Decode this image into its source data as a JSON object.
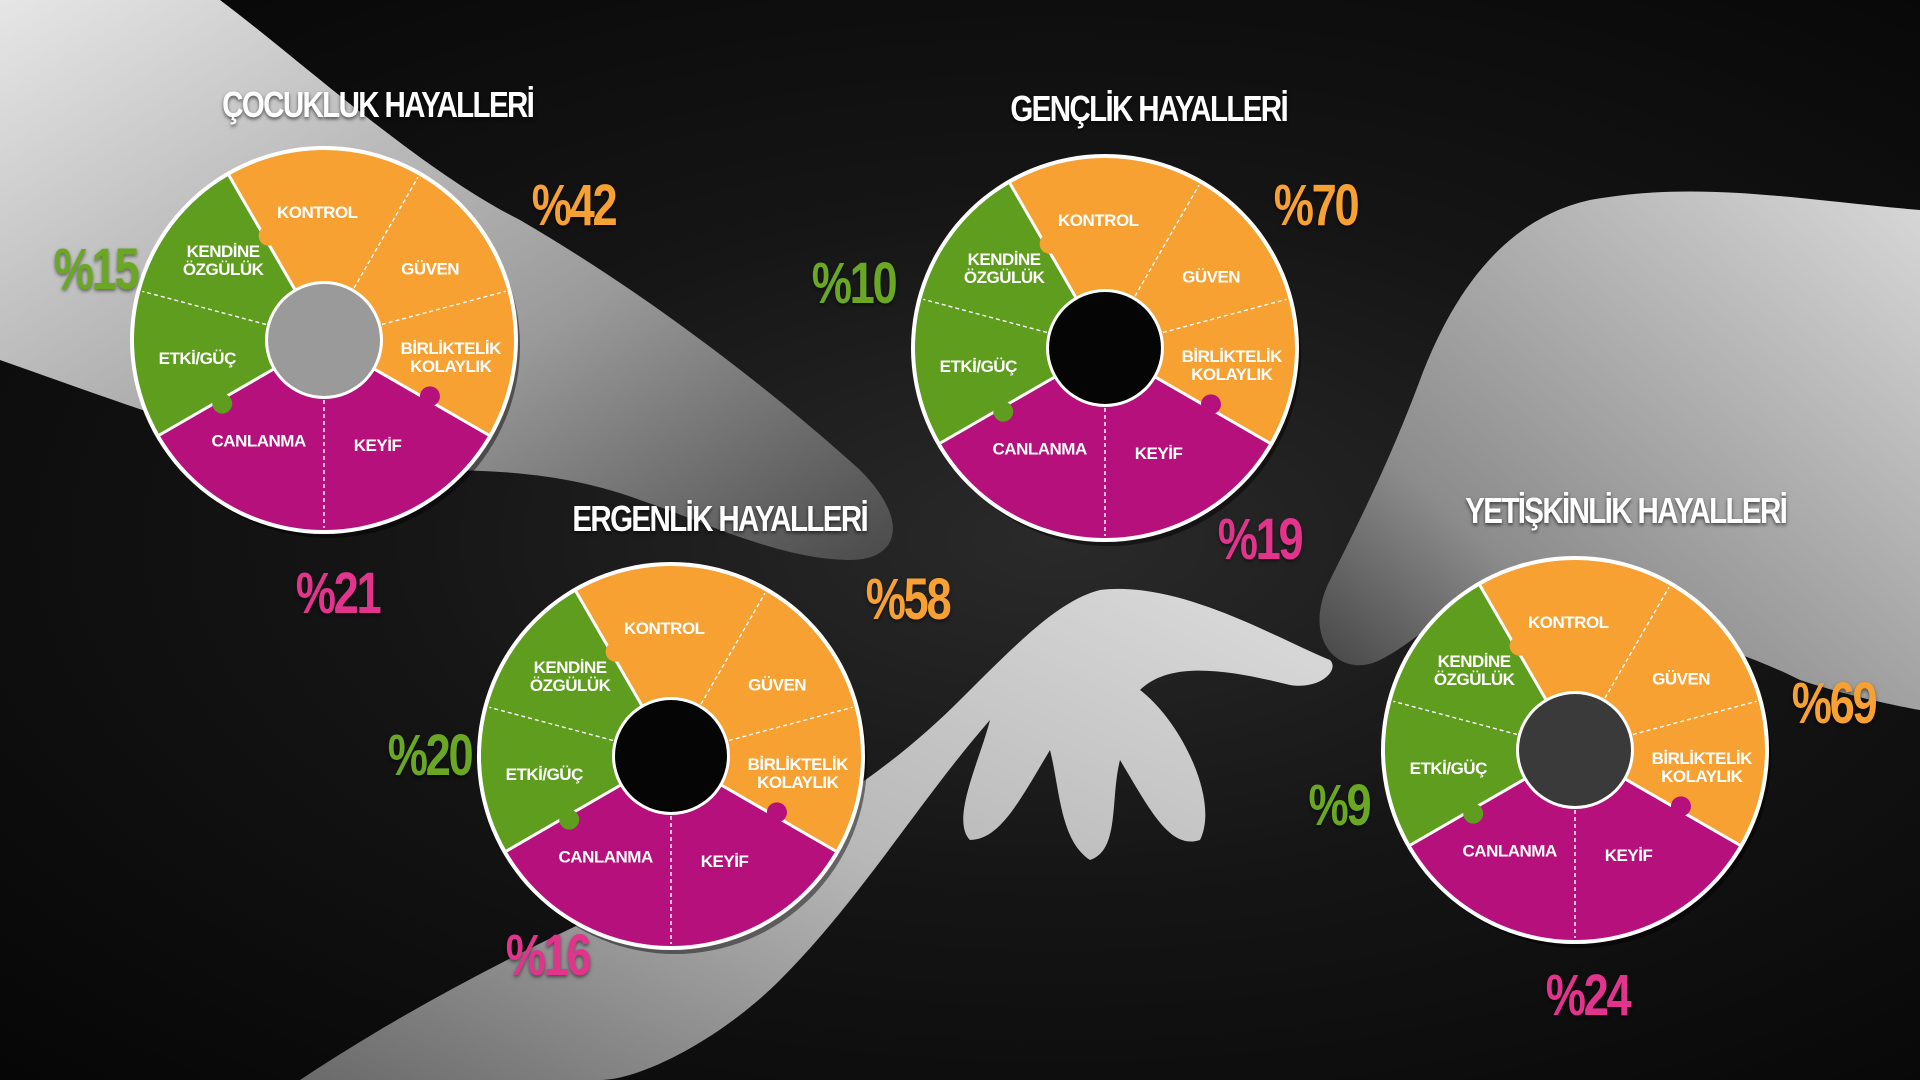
{
  "colors": {
    "orange": "#f7a133",
    "green": "#5e9d1e",
    "magenta": "#b5107c",
    "pct_green": "#6aa722",
    "pct_magenta": "#e2338d"
  },
  "slice_labels": {
    "kontrol": "KONTROL",
    "guven": "GÜVEN",
    "birliktelik_1": "BİRLİKTELİK",
    "birliktelik_2": "KOLAYLIK",
    "keyif": "KEYİF",
    "canlanma": "CANLANMA",
    "etki": "ETKİ/GÜÇ",
    "kendine_1": "KENDİNE",
    "kendine_2": "ÖZGÜLÜK"
  },
  "chart_data": [
    {
      "type": "pie",
      "title": "ÇOCUKLUK HAYALLERİ",
      "series": [
        {
          "name": "orange",
          "categories": [
            "KONTROL",
            "GÜVEN",
            "BİRLİKTELİK KOLAYLIK"
          ],
          "value": 42,
          "label": "%42"
        },
        {
          "name": "magenta",
          "categories": [
            "KEYİF",
            "CANLANMA"
          ],
          "value": 21,
          "label": "%21"
        },
        {
          "name": "green",
          "categories": [
            "ETKİ/GÜÇ",
            "KENDİNE ÖZGÜLÜK"
          ],
          "value": 15,
          "label": "%15"
        }
      ]
    },
    {
      "type": "pie",
      "title": "GENÇLİK HAYALLERİ",
      "series": [
        {
          "name": "orange",
          "categories": [
            "KONTROL",
            "GÜVEN",
            "BİRLİKTELİK KOLAYLIK"
          ],
          "value": 70,
          "label": "%70"
        },
        {
          "name": "magenta",
          "categories": [
            "KEYİF",
            "CANLANMA"
          ],
          "value": 19,
          "label": "%19"
        },
        {
          "name": "green",
          "categories": [
            "ETKİ/GÜÇ",
            "KENDİNE ÖZGÜLÜK"
          ],
          "value": 10,
          "label": "%10"
        }
      ]
    },
    {
      "type": "pie",
      "title": "ERGENLİK HAYALLERİ",
      "series": [
        {
          "name": "orange",
          "categories": [
            "KONTROL",
            "GÜVEN",
            "BİRLİKTELİK KOLAYLIK"
          ],
          "value": 58,
          "label": "%58"
        },
        {
          "name": "magenta",
          "categories": [
            "KEYİF",
            "CANLANMA"
          ],
          "value": 16,
          "label": "%16"
        },
        {
          "name": "green",
          "categories": [
            "ETKİ/GÜÇ",
            "KENDİNE ÖZGÜLÜK"
          ],
          "value": 20,
          "label": "%20"
        }
      ]
    },
    {
      "type": "pie",
      "title": "YETİŞKİNLİK HAYALLERİ",
      "series": [
        {
          "name": "orange",
          "categories": [
            "KONTROL",
            "GÜVEN",
            "BİRLİKTELİK KOLAYLIK"
          ],
          "value": 69,
          "label": "%69"
        },
        {
          "name": "magenta",
          "categories": [
            "KEYİF",
            "CANLANMA"
          ],
          "value": 24,
          "label": "%24"
        },
        {
          "name": "green",
          "categories": [
            "ETKİ/GÜÇ",
            "KENDİNE ÖZGÜLÜK"
          ],
          "value": 9,
          "label": "%9"
        }
      ]
    }
  ]
}
